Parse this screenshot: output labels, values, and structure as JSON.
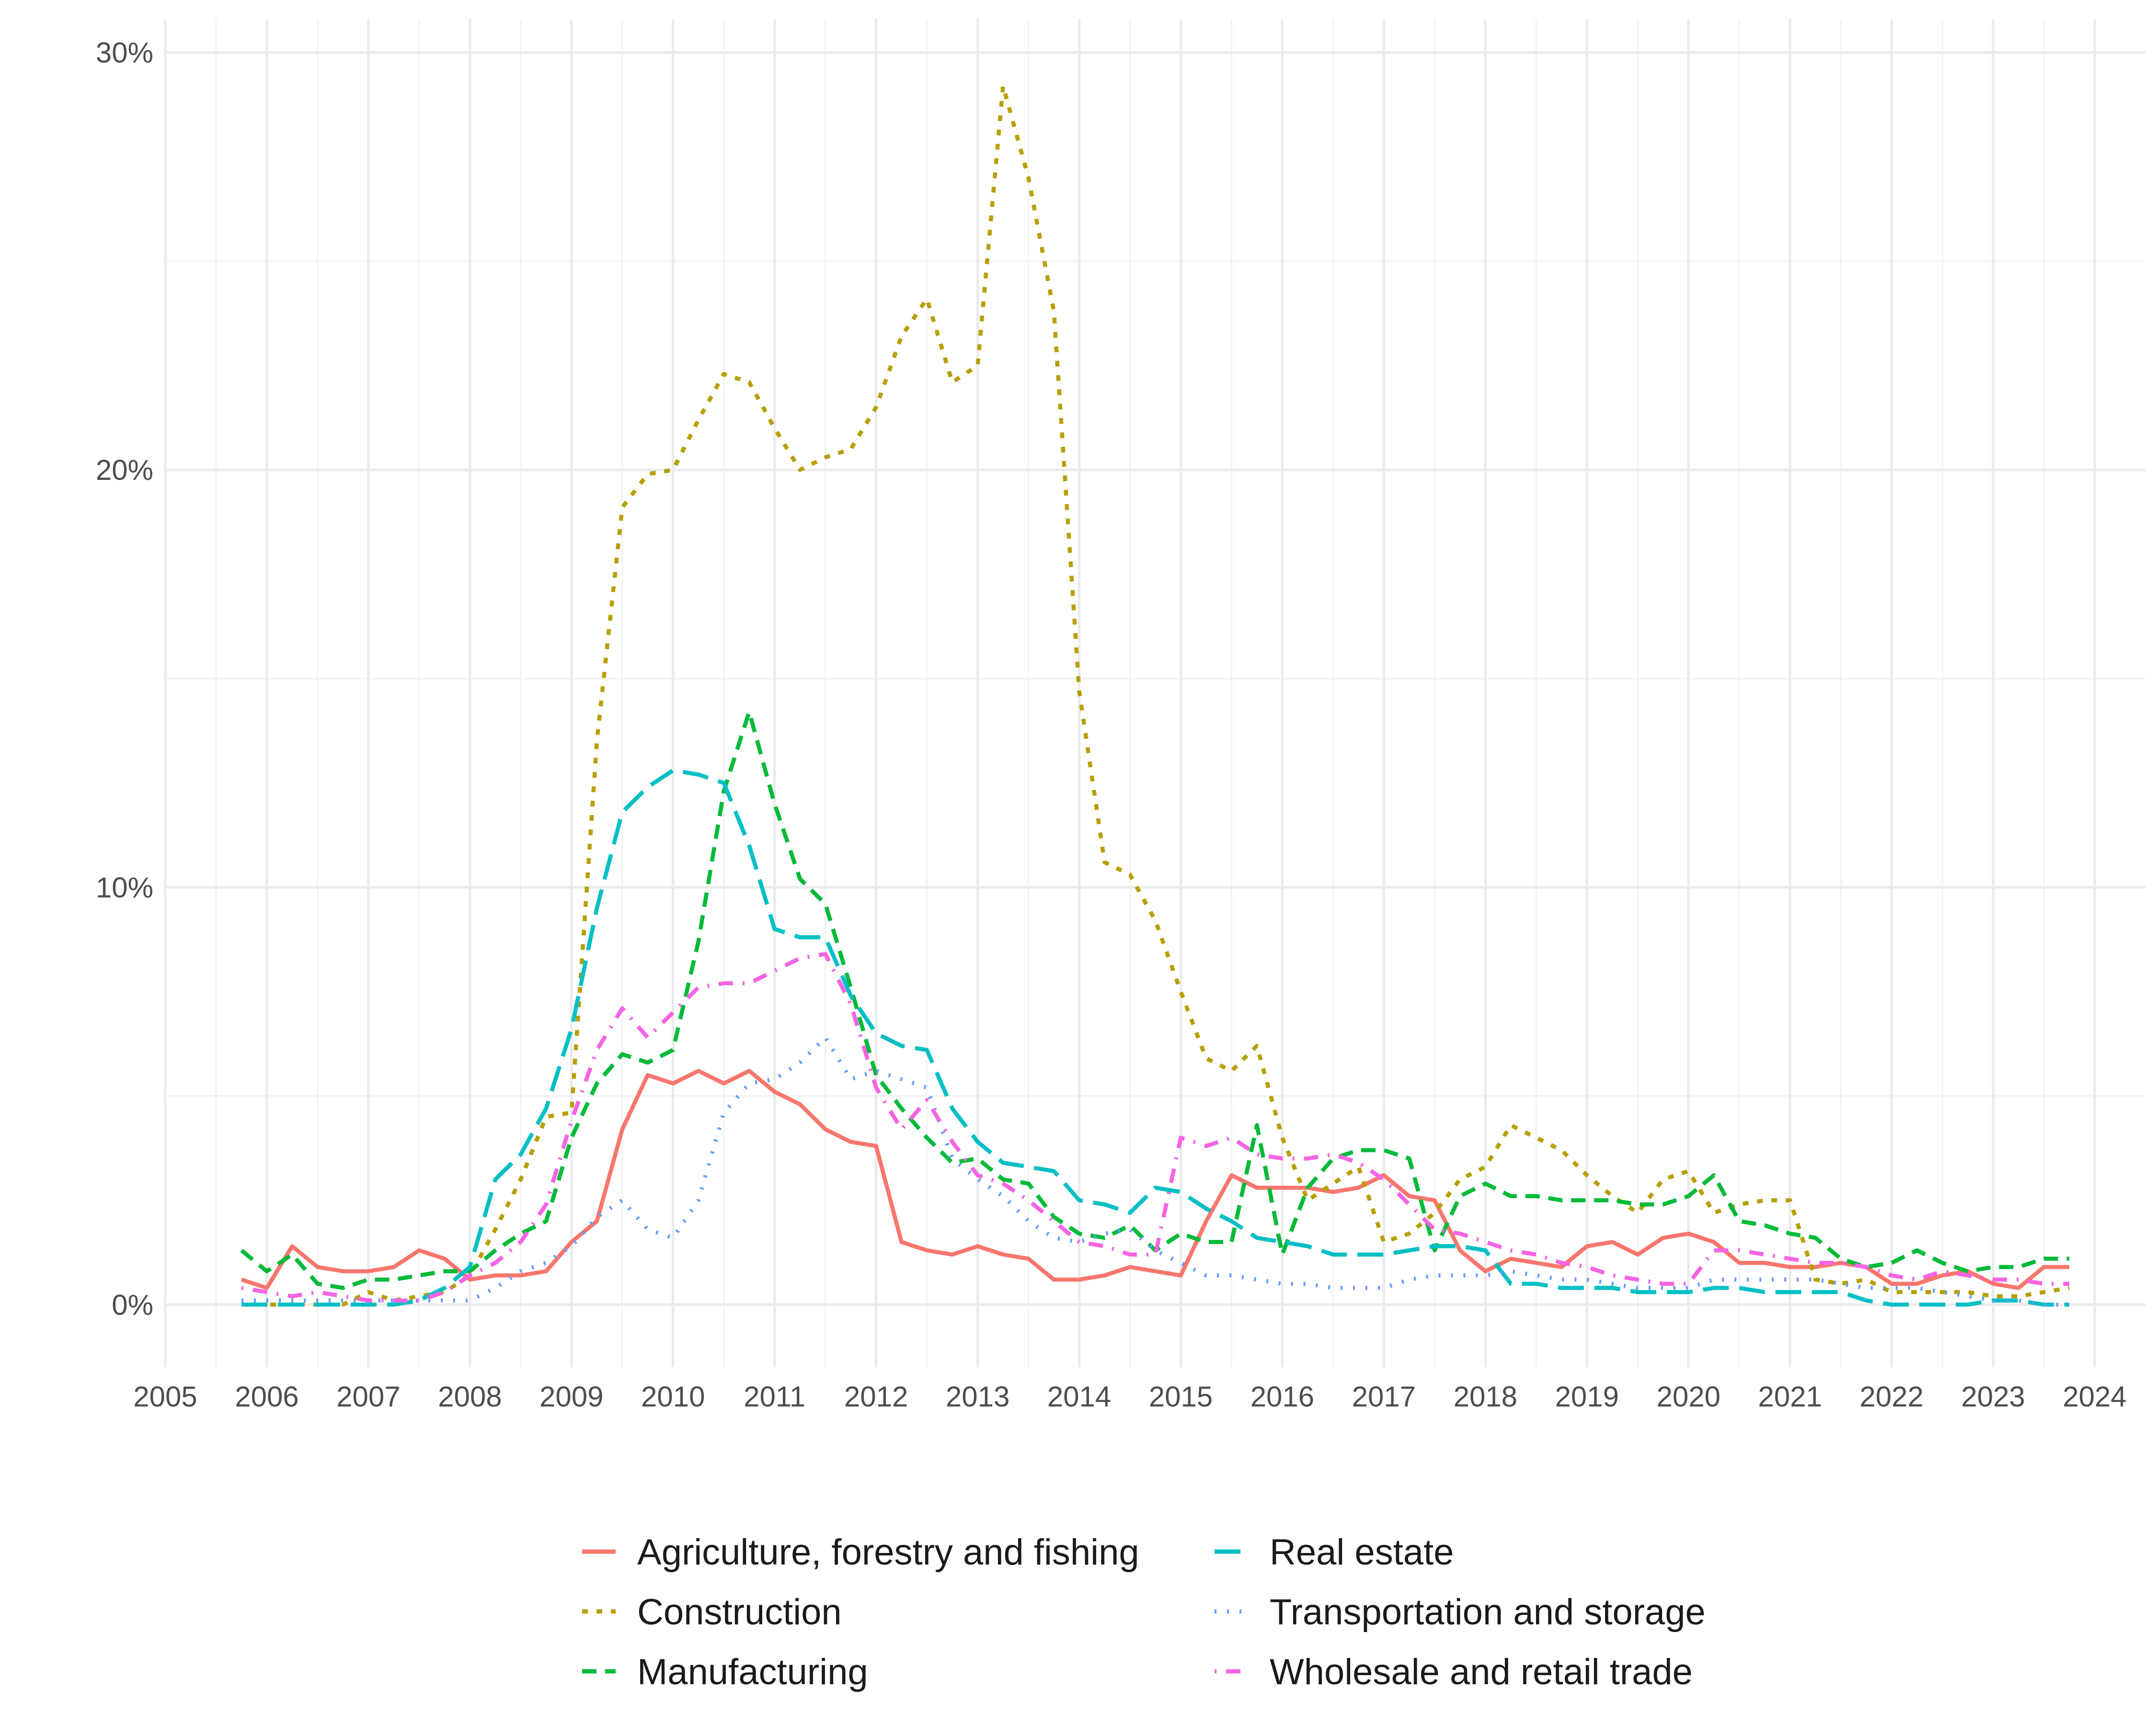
{
  "chart_data": {
    "type": "line",
    "title": "",
    "xlabel": "",
    "ylabel": "",
    "xlim": [
      2005.0,
      2024.5
    ],
    "ylim": [
      -1.5,
      30.8
    ],
    "x_ticks": [
      2005,
      2006,
      2007,
      2008,
      2009,
      2010,
      2011,
      2012,
      2013,
      2014,
      2015,
      2016,
      2017,
      2018,
      2019,
      2020,
      2021,
      2022,
      2023,
      2024
    ],
    "x_tick_labels": [
      "2005",
      "2006",
      "2007",
      "2008",
      "2009",
      "2010",
      "2011",
      "2012",
      "2013",
      "2014",
      "2015",
      "2016",
      "2017",
      "2018",
      "2019",
      "2020",
      "2021",
      "2022",
      "2023",
      "2024"
    ],
    "y_ticks": [
      0,
      10,
      20,
      30
    ],
    "y_tick_labels": [
      "0%",
      "10%",
      "20%",
      "30%"
    ],
    "grid": true,
    "legend_position": "bottom",
    "x_start": 2005.75,
    "x_step": 0.25,
    "series": [
      {
        "name": "Agriculture, forestry and fishing",
        "color": "#F8766D",
        "dash": "solid",
        "values": [
          0.6,
          0.4,
          1.4,
          0.9,
          0.8,
          0.8,
          0.9,
          1.3,
          1.1,
          0.6,
          0.7,
          0.7,
          0.8,
          1.5,
          2.0,
          4.2,
          5.5,
          5.3,
          5.6,
          5.3,
          5.6,
          5.1,
          4.8,
          4.2,
          3.9,
          3.8,
          1.5,
          1.3,
          1.2,
          1.4,
          1.2,
          1.1,
          0.6,
          0.6,
          0.7,
          0.9,
          0.8,
          0.7,
          2.0,
          3.1,
          2.8,
          2.8,
          2.8,
          2.7,
          2.8,
          3.1,
          2.6,
          2.5,
          1.3,
          0.8,
          1.1,
          1.0,
          0.9,
          1.4,
          1.5,
          1.2,
          1.6,
          1.7,
          1.5,
          1.0,
          1.0,
          0.9,
          0.9,
          1.0,
          0.9,
          0.5,
          0.5,
          0.7,
          0.8,
          0.5,
          0.4,
          0.9,
          0.9
        ]
      },
      {
        "name": "Construction",
        "color": "#B79F00",
        "dash": "short",
        "values": [
          0.0,
          0.0,
          0.0,
          0.0,
          0.0,
          0.3,
          0.1,
          0.2,
          0.3,
          0.7,
          1.8,
          3.0,
          4.5,
          4.6,
          13.5,
          19.1,
          19.9,
          20.0,
          21.2,
          22.3,
          22.1,
          21.0,
          20.0,
          20.3,
          20.5,
          21.5,
          23.2,
          24.1,
          22.1,
          22.5,
          29.2,
          27.0,
          23.8,
          14.7,
          10.6,
          10.3,
          9.2,
          7.5,
          5.9,
          5.6,
          6.2,
          4.0,
          2.5,
          2.9,
          3.3,
          1.5,
          1.7,
          2.2,
          3.0,
          3.3,
          4.3,
          4.0,
          3.7,
          3.1,
          2.6,
          2.2,
          3.0,
          3.2,
          2.2,
          2.4,
          2.5,
          2.5,
          0.6,
          0.5,
          0.6,
          0.3,
          0.3,
          0.3,
          0.3,
          0.2,
          0.2,
          0.3,
          0.4
        ]
      },
      {
        "name": "Manufacturing",
        "color": "#00BA38",
        "dash": "medium",
        "values": [
          1.3,
          0.8,
          1.2,
          0.5,
          0.4,
          0.6,
          0.6,
          0.7,
          0.8,
          0.8,
          1.3,
          1.7,
          2.0,
          4.0,
          5.3,
          6.0,
          5.8,
          6.1,
          8.7,
          12.3,
          14.2,
          12.0,
          10.2,
          9.6,
          7.6,
          5.5,
          4.7,
          4.0,
          3.4,
          3.5,
          3.0,
          2.9,
          2.1,
          1.7,
          1.6,
          1.9,
          1.3,
          1.7,
          1.5,
          1.5,
          4.3,
          1.2,
          2.8,
          3.5,
          3.7,
          3.7,
          3.5,
          1.3,
          2.6,
          2.9,
          2.6,
          2.6,
          2.5,
          2.5,
          2.5,
          2.4,
          2.4,
          2.6,
          3.1,
          2.0,
          1.9,
          1.7,
          1.6,
          1.1,
          0.9,
          1.0,
          1.3,
          1.0,
          0.8,
          0.9,
          0.9,
          1.1,
          1.1
        ]
      },
      {
        "name": "Real estate",
        "color": "#00BFC4",
        "dash": "long",
        "values": [
          0.0,
          0.0,
          0.0,
          0.0,
          0.0,
          0.0,
          0.0,
          0.1,
          0.4,
          0.9,
          3.0,
          3.6,
          4.7,
          6.6,
          9.5,
          11.8,
          12.4,
          12.8,
          12.7,
          12.5,
          11.0,
          9.0,
          8.8,
          8.8,
          7.4,
          6.5,
          6.2,
          6.1,
          4.7,
          3.9,
          3.4,
          3.3,
          3.2,
          2.5,
          2.4,
          2.2,
          2.8,
          2.7,
          2.3,
          2.0,
          1.6,
          1.5,
          1.4,
          1.2,
          1.2,
          1.2,
          1.3,
          1.4,
          1.4,
          1.3,
          0.5,
          0.5,
          0.4,
          0.4,
          0.4,
          0.3,
          0.3,
          0.3,
          0.4,
          0.4,
          0.3,
          0.3,
          0.3,
          0.3,
          0.1,
          0.0,
          0.0,
          0.0,
          0.0,
          0.1,
          0.1,
          0.0,
          0.0
        ]
      },
      {
        "name": "Transportation and storage",
        "color": "#619CFF",
        "dash": "dot",
        "values": [
          0.1,
          0.1,
          0.1,
          0.1,
          0.1,
          0.1,
          0.1,
          0.1,
          0.1,
          0.1,
          0.4,
          0.8,
          1.0,
          1.4,
          2.1,
          2.5,
          1.8,
          1.6,
          2.5,
          4.6,
          5.3,
          5.4,
          5.8,
          6.4,
          5.4,
          5.6,
          5.4,
          5.2,
          3.5,
          3.0,
          2.6,
          2.0,
          1.6,
          1.5,
          1.7,
          1.8,
          1.3,
          1.0,
          0.7,
          0.7,
          0.6,
          0.5,
          0.5,
          0.4,
          0.4,
          0.4,
          0.6,
          0.7,
          0.7,
          0.7,
          0.8,
          0.7,
          0.6,
          0.6,
          0.5,
          0.4,
          0.4,
          0.4,
          0.6,
          0.6,
          0.6,
          0.6,
          0.6,
          0.5,
          0.4,
          0.4,
          0.4,
          0.3,
          0.2,
          0.1,
          0.1,
          0.0,
          0.0
        ]
      },
      {
        "name": "Wholesale and retail trade",
        "color": "#F564E3",
        "dash": "dashdot",
        "values": [
          0.4,
          0.3,
          0.2,
          0.3,
          0.2,
          0.1,
          0.1,
          0.1,
          0.3,
          0.7,
          1.0,
          1.5,
          2.4,
          4.4,
          6.1,
          7.1,
          6.4,
          7.0,
          7.6,
          7.7,
          7.7,
          8.0,
          8.3,
          8.4,
          7.2,
          5.2,
          4.2,
          4.9,
          3.9,
          3.1,
          2.9,
          2.5,
          2.0,
          1.5,
          1.4,
          1.2,
          1.2,
          4.0,
          3.8,
          4.0,
          3.6,
          3.5,
          3.5,
          3.6,
          3.4,
          3.0,
          2.4,
          1.8,
          1.7,
          1.5,
          1.3,
          1.2,
          1.0,
          0.9,
          0.7,
          0.6,
          0.5,
          0.5,
          1.3,
          1.3,
          1.2,
          1.1,
          1.0,
          1.0,
          0.9,
          0.7,
          0.6,
          0.8,
          0.7,
          0.6,
          0.6,
          0.5,
          0.5
        ]
      }
    ]
  }
}
